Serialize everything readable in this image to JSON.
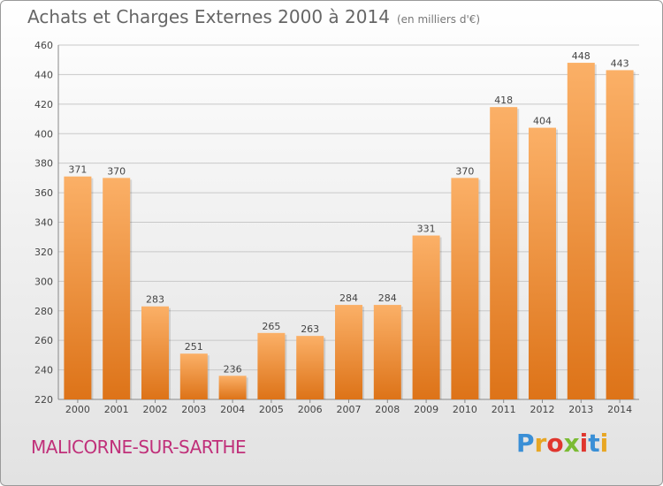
{
  "title": "Achats et Charges Externes 2000 à 2014",
  "subtitle": "(en milliers d'€)",
  "place_name": "MALICORNE-SUR-SARTHE",
  "logo": {
    "letters": [
      "P",
      "r",
      "o",
      "x",
      "i",
      "t",
      "i"
    ],
    "colors": [
      "#3a8fd6",
      "#e8a623",
      "#e0362e",
      "#7bbb34",
      "#e0362e",
      "#3a8fd6",
      "#e8a623"
    ]
  },
  "colors": {
    "bar_light": "#fbb067",
    "bar_dark": "#dd7318",
    "grid": "#c8c8c8",
    "text": "#444444"
  },
  "chart_data": {
    "type": "bar",
    "categories": [
      "2000",
      "2001",
      "2002",
      "2003",
      "2004",
      "2005",
      "2006",
      "2007",
      "2008",
      "2009",
      "2010",
      "2011",
      "2012",
      "2013",
      "2014"
    ],
    "values": [
      371,
      370,
      283,
      251,
      236,
      265,
      263,
      284,
      284,
      331,
      370,
      418,
      404,
      448,
      443
    ],
    "ylim": [
      220,
      460
    ],
    "yticks": [
      220,
      240,
      260,
      280,
      300,
      320,
      340,
      360,
      380,
      400,
      420,
      440,
      460
    ],
    "grid": true,
    "legend": "none"
  }
}
